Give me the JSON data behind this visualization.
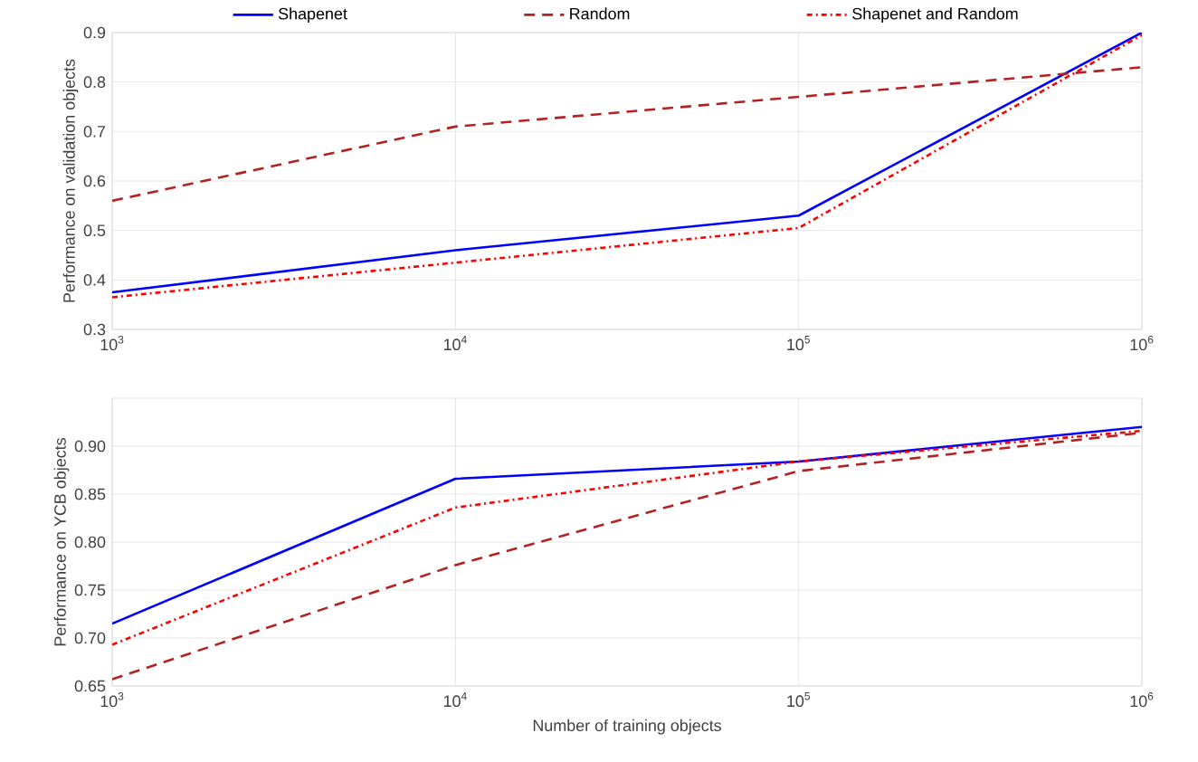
{
  "chart_data": [
    {
      "type": "line",
      "ylabel": "Performance on validation objects",
      "log": "x",
      "grid": true,
      "legend": "top",
      "x": [
        1000,
        10000,
        100000,
        1000000
      ],
      "xlim": [
        1000,
        1000000
      ],
      "xticks": [
        {
          "value": 1000,
          "label": "10$^{3}$"
        },
        {
          "value": 10000,
          "label": "10$^{4}$"
        },
        {
          "value": 100000,
          "label": "10$^{5}$"
        },
        {
          "value": 1000000,
          "label": "10$^{6}$"
        }
      ],
      "ylim": [
        0.3,
        0.9
      ],
      "yticks": [
        0.3,
        0.4,
        0.5,
        0.6,
        0.7,
        0.8,
        0.9
      ],
      "series": [
        {
          "name": "Shapenet",
          "color": "#0000ff",
          "line_style": "solid",
          "values": [
            0.375,
            0.46,
            0.53,
            0.9
          ]
        },
        {
          "name": "Random",
          "color": "#b22222",
          "line_style": "dashed",
          "values": [
            0.56,
            0.71,
            0.77,
            0.83
          ]
        },
        {
          "name": "Shapenet and Random",
          "color": "#ff0000",
          "line_style": "dashdot",
          "values": [
            0.365,
            0.435,
            0.505,
            0.895
          ]
        }
      ]
    },
    {
      "type": "line",
      "xlabel": "Number of training objects",
      "ylabel": "Performance on YCB objects",
      "log": "x",
      "grid": true,
      "x": [
        1000,
        10000,
        100000,
        1000000
      ],
      "xlim": [
        1000,
        1000000
      ],
      "xticks": [
        {
          "value": 1000,
          "label": "10$^{3}$"
        },
        {
          "value": 10000,
          "label": "10$^{4}$"
        },
        {
          "value": 100000,
          "label": "10$^{5}$"
        },
        {
          "value": 1000000,
          "label": "10$^{6}$"
        }
      ],
      "ylim": [
        0.65,
        0.95
      ],
      "yticks": [
        0.65,
        {
          "value": 0.7,
          "label": "0.70"
        },
        0.75,
        {
          "value": 0.8,
          "label": "0.80"
        },
        0.85,
        {
          "value": 0.9,
          "label": "0.90"
        }
      ],
      "series": [
        {
          "color": "#0000ff",
          "line_style": "solid",
          "values": [
            0.715,
            0.866,
            0.884,
            0.92
          ]
        },
        {
          "color": "#b22222",
          "line_style": "dashed",
          "values": [
            0.657,
            0.776,
            0.874,
            0.914
          ]
        },
        {
          "color": "#ff0000",
          "line_style": "dashdot",
          "values": [
            0.693,
            0.836,
            0.884,
            0.916
          ]
        }
      ]
    }
  ]
}
